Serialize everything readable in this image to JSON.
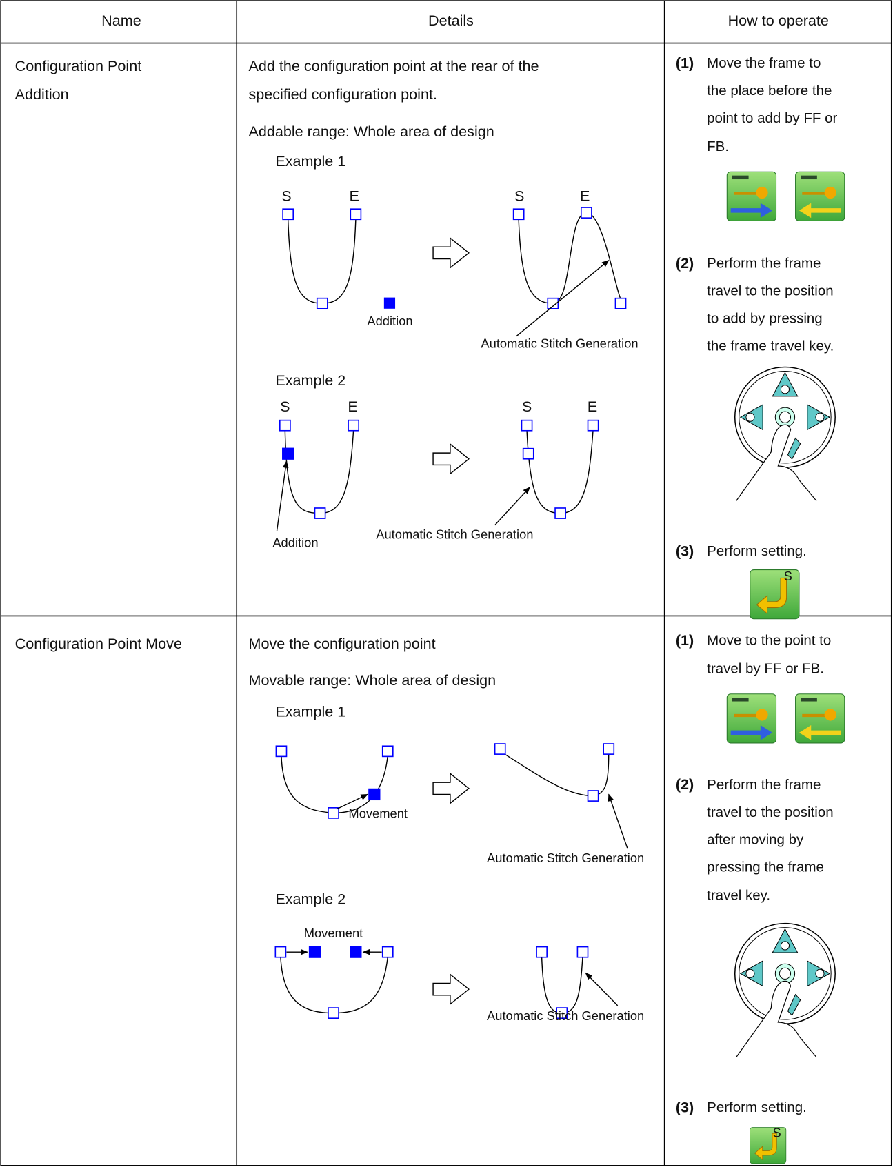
{
  "table": {
    "header": [
      "Name",
      "Details",
      "How to operate"
    ],
    "rows": [
      {
        "name": [
          "Configuration Point",
          "Addition"
        ],
        "details": [
          "Add the configuration point at the rear of the",
          "specified configuration point.",
          "Addable range: Whole area of design"
        ],
        "examples": [
          {
            "title": "Example 1",
            "labels": [
              "S",
              "E",
              "Addition",
              "S",
              "E",
              "Automatic Stitch Generation"
            ]
          },
          {
            "title": "Example 2",
            "labels": [
              "S",
              "E",
              "Addition",
              "S",
              "E",
              "Automatic Stitch Generation"
            ]
          }
        ],
        "steps": [
          {
            "num": "(1)",
            "lines": [
              "Move the frame to",
              "the place before the",
              "point to add by FF or",
              "FB."
            ]
          },
          {
            "num": "(2)",
            "lines": [
              "Perform the frame",
              "travel to the position",
              "to add by pressing",
              "the frame travel key."
            ]
          },
          {
            "num": "(3)",
            "lines": [
              "Perform setting."
            ],
            "icon": "S"
          }
        ]
      },
      {
        "name": [
          "Configuration Point Move"
        ],
        "details": [
          "Move the configuration point",
          "Movable range: Whole area of design"
        ],
        "examples": [
          {
            "title": "Example 1",
            "labels": [
              "Movement",
              "Automatic Stitch Generation"
            ]
          },
          {
            "title": "Example 2",
            "labels": [
              "Movement",
              "Automatic Stitch Generation"
            ]
          }
        ],
        "steps": [
          {
            "num": "(1)",
            "lines": [
              "Move to the point to",
              "travel by FF or FB."
            ]
          },
          {
            "num": "(2)",
            "lines": [
              "Perform the frame",
              "travel to the position",
              "after moving by",
              "pressing the frame",
              "travel key."
            ]
          },
          {
            "num": "(3)",
            "lines": [
              "Perform setting."
            ],
            "icon": "S"
          }
        ]
      }
    ]
  }
}
